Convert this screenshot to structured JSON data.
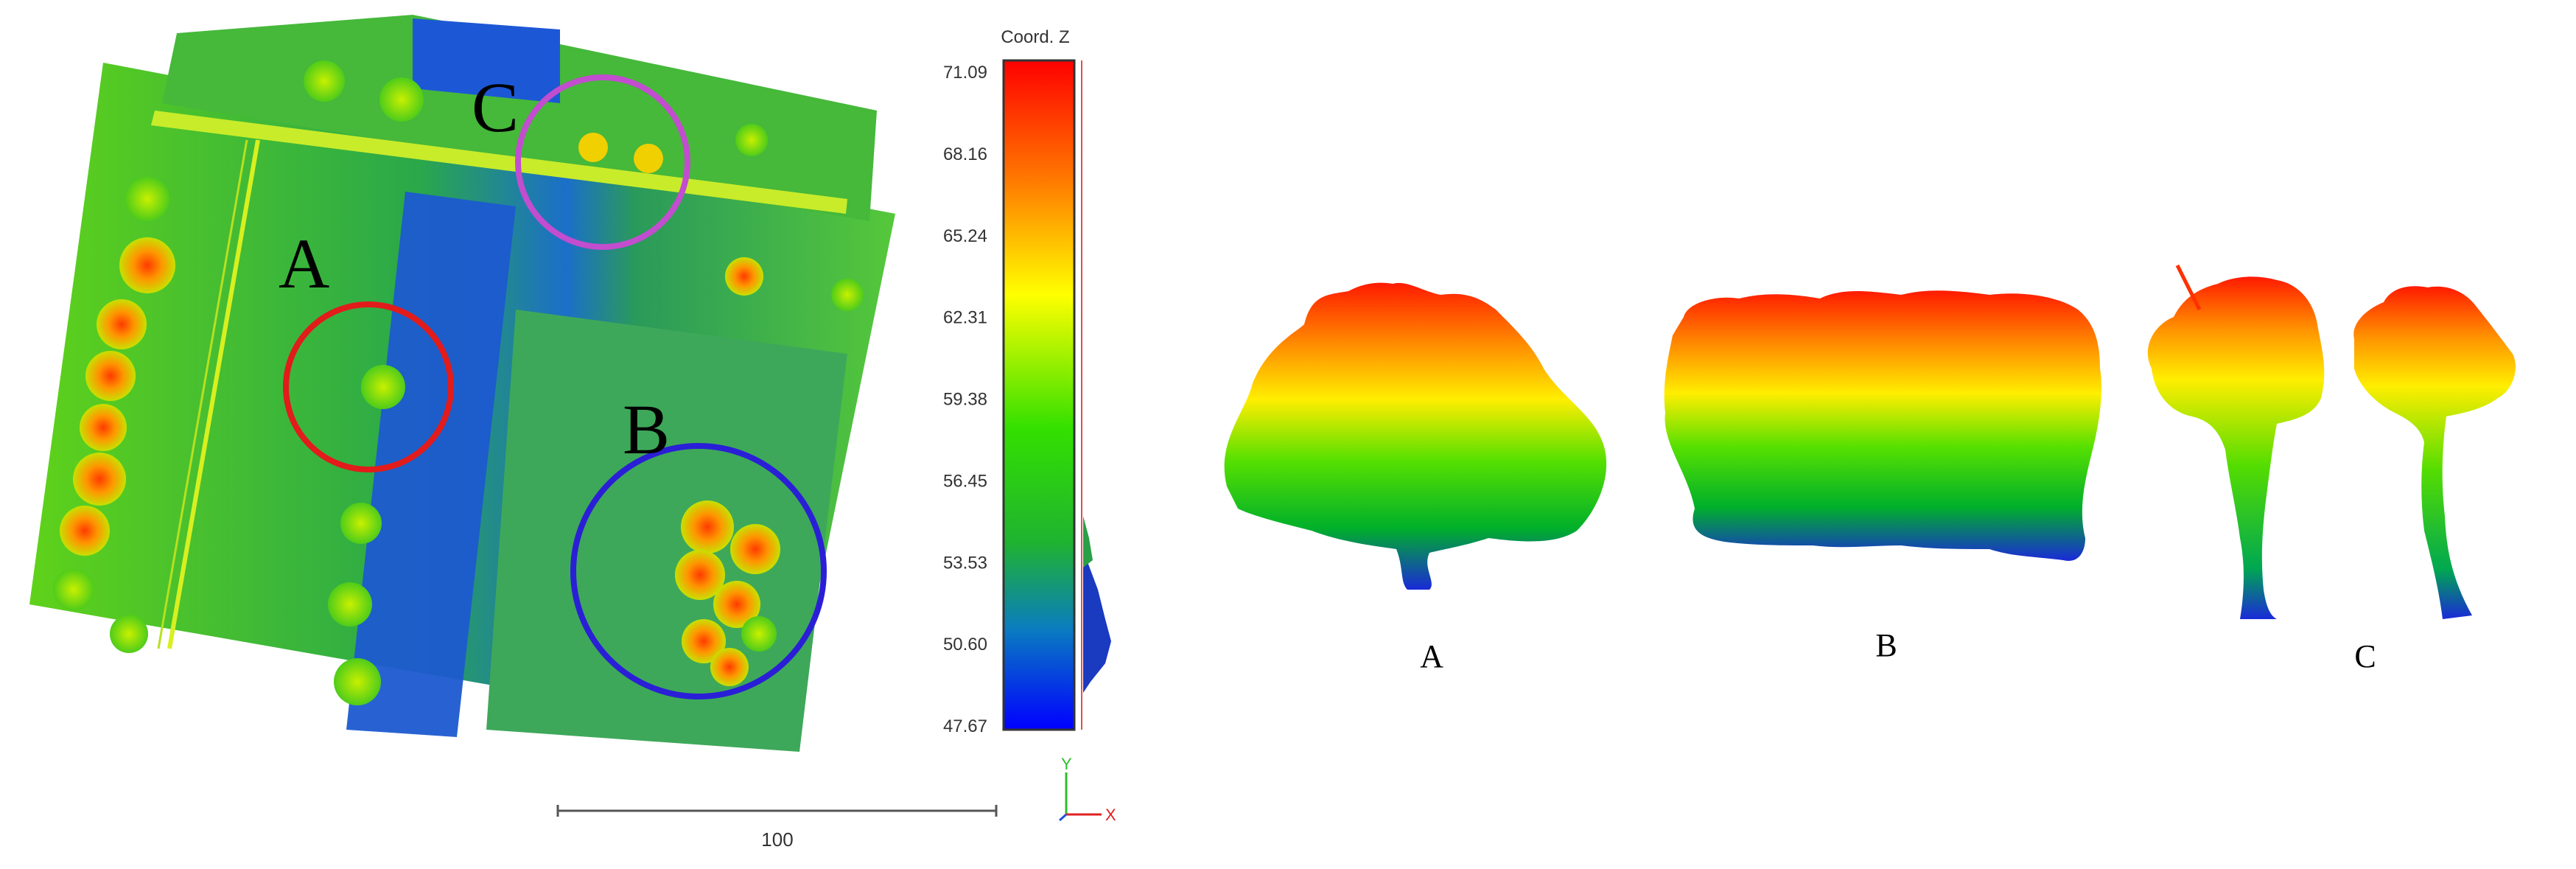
{
  "colorbar": {
    "title": "Coord. Z",
    "ticks": [
      "71.09",
      "68.16",
      "65.24",
      "62.31",
      "59.38",
      "56.45",
      "53.53",
      "50.60",
      "47.67"
    ]
  },
  "scale_bar": {
    "label": "100"
  },
  "axes": {
    "y_label": "Y",
    "x_label": "X"
  },
  "map_labels": {
    "a": "A",
    "b": "B",
    "c": "C"
  },
  "profile_labels": {
    "a": "A",
    "b": "B",
    "c": "C"
  },
  "colors": {
    "marker_a": "#e21b1b",
    "marker_b": "#2a1fd6",
    "marker_c": "#c24dcf",
    "ground": "#38b22d",
    "road": "#1e7ac4"
  },
  "icons": [
    "xy-axis-icon"
  ]
}
